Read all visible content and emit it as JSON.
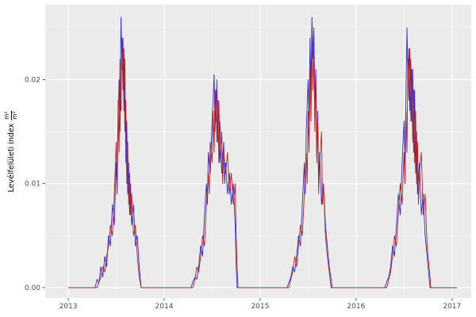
{
  "figure": {
    "background": "#ffffff",
    "panel_background": "#EBEBEB",
    "grid_major_color": "#FFFFFF",
    "grid_minor_color": "#F4F4F4",
    "axis_text_color": "#4D4D4D",
    "tick_mark_color": "#333333"
  },
  "y_axis_title": {
    "text": "Levélfelületi index",
    "fraction_numerator": "m²",
    "fraction_denominator": "m²"
  },
  "chart_data": {
    "type": "line",
    "title": "",
    "xlabel": "",
    "ylabel": "Levélfelületi index m²/m²",
    "grid": true,
    "legend": "none",
    "xlim": [
      2012.76,
      2017.2
    ],
    "ylim": [
      -0.001,
      0.0272
    ],
    "x_ticks": [
      2013,
      2014,
      2015,
      2016,
      2017
    ],
    "x_tick_labels": [
      "2013",
      "2014",
      "2015",
      "2016",
      "2017"
    ],
    "x_minor_ticks": [
      2013.5,
      2014.5,
      2015.5,
      2016.5
    ],
    "y_ticks": [
      0.0,
      0.01,
      0.02
    ],
    "y_tick_labels": [
      "0.00",
      "0.01",
      "0.02"
    ],
    "y_minor_ticks": [
      0.005,
      0.015,
      0.025
    ],
    "series": [
      {
        "name": "series-blue",
        "color": "#2B2BD6",
        "points": [
          [
            2013.0,
            0
          ],
          [
            2013.28,
            0
          ],
          [
            2013.3,
            0.0008
          ],
          [
            2013.32,
            0.0004
          ],
          [
            2013.34,
            0.002
          ],
          [
            2013.36,
            0.001
          ],
          [
            2013.38,
            0.003
          ],
          [
            2013.4,
            0.002
          ],
          [
            2013.42,
            0.005
          ],
          [
            2013.44,
            0.004
          ],
          [
            2013.46,
            0.008
          ],
          [
            2013.48,
            0.006
          ],
          [
            2013.5,
            0.012
          ],
          [
            2013.51,
            0.009
          ],
          [
            2013.52,
            0.016
          ],
          [
            2013.53,
            0.02
          ],
          [
            2013.54,
            0.015
          ],
          [
            2013.55,
            0.026
          ],
          [
            2013.56,
            0.021
          ],
          [
            2013.57,
            0.024
          ],
          [
            2013.58,
            0.017
          ],
          [
            2013.59,
            0.022
          ],
          [
            2013.6,
            0.012
          ],
          [
            2013.61,
            0.016
          ],
          [
            2013.62,
            0.009
          ],
          [
            2013.63,
            0.012
          ],
          [
            2013.64,
            0.007
          ],
          [
            2013.65,
            0.01
          ],
          [
            2013.66,
            0.006
          ],
          [
            2013.68,
            0.008
          ],
          [
            2013.7,
            0.004
          ],
          [
            2013.72,
            0.005
          ],
          [
            2013.74,
            0.002
          ],
          [
            2013.76,
            0
          ],
          [
            2014.28,
            0
          ],
          [
            2014.3,
            0.0006
          ],
          [
            2014.32,
            0.001
          ],
          [
            2014.34,
            0.0008
          ],
          [
            2014.36,
            0.002
          ],
          [
            2014.38,
            0.004
          ],
          [
            2014.4,
            0.003
          ],
          [
            2014.42,
            0.007
          ],
          [
            2014.44,
            0.01
          ],
          [
            2014.45,
            0.008
          ],
          [
            2014.46,
            0.013
          ],
          [
            2014.48,
            0.011
          ],
          [
            2014.5,
            0.016
          ],
          [
            2014.52,
            0.0205
          ],
          [
            2014.53,
            0.015
          ],
          [
            2014.54,
            0.019
          ],
          [
            2014.55,
            0.014
          ],
          [
            2014.56,
            0.018
          ],
          [
            2014.57,
            0.012
          ],
          [
            2014.58,
            0.016
          ],
          [
            2014.6,
            0.011
          ],
          [
            2014.62,
            0.014
          ],
          [
            2014.63,
            0.01
          ],
          [
            2014.64,
            0.012
          ],
          [
            2014.66,
            0.009
          ],
          [
            2014.68,
            0.011
          ],
          [
            2014.7,
            0.008
          ],
          [
            2014.72,
            0.01
          ],
          [
            2014.74,
            0.006
          ],
          [
            2014.75,
            0.002
          ],
          [
            2014.76,
            0
          ],
          [
            2015.28,
            0
          ],
          [
            2015.3,
            0.0005
          ],
          [
            2015.32,
            0.001
          ],
          [
            2015.34,
            0.002
          ],
          [
            2015.36,
            0.0015
          ],
          [
            2015.38,
            0.003
          ],
          [
            2015.4,
            0.005
          ],
          [
            2015.42,
            0.004
          ],
          [
            2015.44,
            0.008
          ],
          [
            2015.46,
            0.012
          ],
          [
            2015.47,
            0.009
          ],
          [
            2015.48,
            0.015
          ],
          [
            2015.5,
            0.02
          ],
          [
            2015.51,
            0.016
          ],
          [
            2015.52,
            0.024
          ],
          [
            2015.53,
            0.019
          ],
          [
            2015.54,
            0.026
          ],
          [
            2015.55,
            0.022
          ],
          [
            2015.56,
            0.025
          ],
          [
            2015.57,
            0.018
          ],
          [
            2015.58,
            0.021
          ],
          [
            2015.59,
            0.013
          ],
          [
            2015.6,
            0.017
          ],
          [
            2015.61,
            0.01
          ],
          [
            2015.62,
            0.013
          ],
          [
            2015.64,
            0.008
          ],
          [
            2015.66,
            0.01
          ],
          [
            2015.68,
            0.006
          ],
          [
            2015.7,
            0.004
          ],
          [
            2015.72,
            0.002
          ],
          [
            2015.74,
            0.0008
          ],
          [
            2015.75,
            0
          ],
          [
            2016.3,
            0
          ],
          [
            2016.32,
            0.0006
          ],
          [
            2016.34,
            0.001
          ],
          [
            2016.36,
            0.002
          ],
          [
            2016.38,
            0.004
          ],
          [
            2016.4,
            0.003
          ],
          [
            2016.42,
            0.006
          ],
          [
            2016.44,
            0.009
          ],
          [
            2016.46,
            0.007
          ],
          [
            2016.48,
            0.012
          ],
          [
            2016.5,
            0.016
          ],
          [
            2016.51,
            0.012
          ],
          [
            2016.52,
            0.019
          ],
          [
            2016.53,
            0.025
          ],
          [
            2016.54,
            0.02
          ],
          [
            2016.55,
            0.023
          ],
          [
            2016.56,
            0.017
          ],
          [
            2016.57,
            0.022
          ],
          [
            2016.58,
            0.016
          ],
          [
            2016.59,
            0.021
          ],
          [
            2016.6,
            0.013
          ],
          [
            2016.61,
            0.019
          ],
          [
            2016.62,
            0.011
          ],
          [
            2016.63,
            0.015
          ],
          [
            2016.64,
            0.009
          ],
          [
            2016.66,
            0.012
          ],
          [
            2016.68,
            0.007
          ],
          [
            2016.7,
            0.009
          ],
          [
            2016.72,
            0.005
          ],
          [
            2016.74,
            0.003
          ],
          [
            2016.76,
            0.001
          ],
          [
            2016.77,
            0
          ],
          [
            2017.05,
            0
          ]
        ]
      },
      {
        "name": "series-darkred",
        "color": "#B22222",
        "points": [
          [
            2013.0,
            0
          ],
          [
            2013.3,
            0
          ],
          [
            2013.32,
            0.0005
          ],
          [
            2013.34,
            0.001
          ],
          [
            2013.36,
            0.002
          ],
          [
            2013.38,
            0.0015
          ],
          [
            2013.4,
            0.003
          ],
          [
            2013.42,
            0.004
          ],
          [
            2013.44,
            0.006
          ],
          [
            2013.46,
            0.005
          ],
          [
            2013.48,
            0.009
          ],
          [
            2013.5,
            0.014
          ],
          [
            2013.51,
            0.01
          ],
          [
            2013.52,
            0.018
          ],
          [
            2013.53,
            0.013
          ],
          [
            2013.54,
            0.022
          ],
          [
            2013.55,
            0.017
          ],
          [
            2013.56,
            0.024
          ],
          [
            2013.57,
            0.019
          ],
          [
            2013.58,
            0.023
          ],
          [
            2013.59,
            0.015
          ],
          [
            2013.6,
            0.018
          ],
          [
            2013.61,
            0.01
          ],
          [
            2013.62,
            0.014
          ],
          [
            2013.63,
            0.008
          ],
          [
            2013.64,
            0.011
          ],
          [
            2013.65,
            0.007
          ],
          [
            2013.66,
            0.009
          ],
          [
            2013.68,
            0.005
          ],
          [
            2013.7,
            0.006
          ],
          [
            2013.72,
            0.003
          ],
          [
            2013.74,
            0.001
          ],
          [
            2013.76,
            0
          ],
          [
            2014.3,
            0
          ],
          [
            2014.32,
            0.0008
          ],
          [
            2014.34,
            0.002
          ],
          [
            2014.36,
            0.0015
          ],
          [
            2014.38,
            0.003
          ],
          [
            2014.4,
            0.005
          ],
          [
            2014.42,
            0.004
          ],
          [
            2014.44,
            0.008
          ],
          [
            2014.46,
            0.011
          ],
          [
            2014.47,
            0.009
          ],
          [
            2014.48,
            0.014
          ],
          [
            2014.5,
            0.012
          ],
          [
            2014.51,
            0.017
          ],
          [
            2014.52,
            0.013
          ],
          [
            2014.53,
            0.019
          ],
          [
            2014.54,
            0.016
          ],
          [
            2014.55,
            0.02
          ],
          [
            2014.56,
            0.014
          ],
          [
            2014.57,
            0.018
          ],
          [
            2014.58,
            0.012
          ],
          [
            2014.6,
            0.015
          ],
          [
            2014.61,
            0.01
          ],
          [
            2014.62,
            0.013
          ],
          [
            2014.64,
            0.011
          ],
          [
            2014.66,
            0.013
          ],
          [
            2014.68,
            0.009
          ],
          [
            2014.7,
            0.011
          ],
          [
            2014.72,
            0.008
          ],
          [
            2014.74,
            0.01
          ],
          [
            2014.75,
            0.005
          ],
          [
            2014.76,
            0.002
          ],
          [
            2014.77,
            0
          ],
          [
            2015.3,
            0
          ],
          [
            2015.32,
            0.0008
          ],
          [
            2015.34,
            0.0015
          ],
          [
            2015.36,
            0.003
          ],
          [
            2015.38,
            0.002
          ],
          [
            2015.4,
            0.004
          ],
          [
            2015.42,
            0.006
          ],
          [
            2015.44,
            0.005
          ],
          [
            2015.46,
            0.009
          ],
          [
            2015.48,
            0.013
          ],
          [
            2015.49,
            0.01
          ],
          [
            2015.5,
            0.017
          ],
          [
            2015.51,
            0.013
          ],
          [
            2015.52,
            0.021
          ],
          [
            2015.53,
            0.016
          ],
          [
            2015.54,
            0.024
          ],
          [
            2015.55,
            0.019
          ],
          [
            2015.56,
            0.023
          ],
          [
            2015.57,
            0.015
          ],
          [
            2015.58,
            0.02
          ],
          [
            2015.59,
            0.012
          ],
          [
            2015.6,
            0.016
          ],
          [
            2015.61,
            0.009
          ],
          [
            2015.62,
            0.012
          ],
          [
            2015.64,
            0.015
          ],
          [
            2015.65,
            0.008
          ],
          [
            2015.66,
            0.01
          ],
          [
            2015.68,
            0.005
          ],
          [
            2015.7,
            0.003
          ],
          [
            2015.72,
            0.0015
          ],
          [
            2015.74,
            0
          ],
          [
            2016.32,
            0
          ],
          [
            2016.34,
            0.0008
          ],
          [
            2016.36,
            0.0015
          ],
          [
            2016.38,
            0.003
          ],
          [
            2016.4,
            0.005
          ],
          [
            2016.42,
            0.004
          ],
          [
            2016.44,
            0.007
          ],
          [
            2016.46,
            0.01
          ],
          [
            2016.48,
            0.008
          ],
          [
            2016.5,
            0.013
          ],
          [
            2016.51,
            0.01
          ],
          [
            2016.52,
            0.017
          ],
          [
            2016.53,
            0.013
          ],
          [
            2016.54,
            0.022
          ],
          [
            2016.55,
            0.018
          ],
          [
            2016.56,
            0.023
          ],
          [
            2016.57,
            0.016
          ],
          [
            2016.58,
            0.021
          ],
          [
            2016.59,
            0.014
          ],
          [
            2016.6,
            0.019
          ],
          [
            2016.61,
            0.012
          ],
          [
            2016.62,
            0.017
          ],
          [
            2016.63,
            0.01
          ],
          [
            2016.64,
            0.014
          ],
          [
            2016.65,
            0.008
          ],
          [
            2016.66,
            0.011
          ],
          [
            2016.68,
            0.013
          ],
          [
            2016.7,
            0.007
          ],
          [
            2016.72,
            0.009
          ],
          [
            2016.74,
            0.004
          ],
          [
            2016.76,
            0.002
          ],
          [
            2016.78,
            0
          ],
          [
            2017.05,
            0
          ]
        ]
      }
    ]
  }
}
